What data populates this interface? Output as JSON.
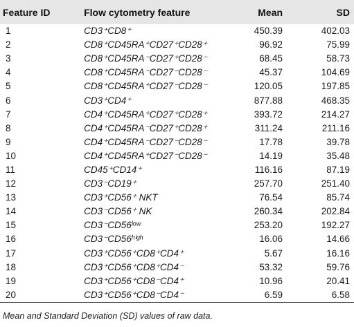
{
  "table": {
    "headers": {
      "id": "Feature ID",
      "feature": "Flow cytometry feature",
      "mean": "Mean",
      "sd": "SD"
    },
    "rows": [
      {
        "id": "1",
        "feature": "CD3⁺CD8⁺",
        "mean": "450.39",
        "sd": "402.03"
      },
      {
        "id": "2",
        "feature": "CD8⁺CD45RA⁺CD27⁺CD28⁺",
        "mean": "96.92",
        "sd": "75.99"
      },
      {
        "id": "3",
        "feature": "CD8⁺CD45RA⁻CD27⁺CD28⁻",
        "mean": "68.45",
        "sd": "58.73"
      },
      {
        "id": "4",
        "feature": "CD8⁺CD45RA⁻CD27⁻CD28⁻",
        "mean": "45.37",
        "sd": "104.69"
      },
      {
        "id": "5",
        "feature": "CD8⁺CD45RA⁺CD27⁻CD28⁻",
        "mean": "120.05",
        "sd": "197.85"
      },
      {
        "id": "6",
        "feature": "CD3⁺CD4⁺",
        "mean": "877.88",
        "sd": "468.35"
      },
      {
        "id": "7",
        "feature": "CD4⁺CD45RA⁺CD27⁺CD28⁺",
        "mean": "393.72",
        "sd": "214.27"
      },
      {
        "id": "8",
        "feature": "CD4⁺CD45RA⁻CD27⁺CD28⁺",
        "mean": "311.24",
        "sd": "211.16"
      },
      {
        "id": "9",
        "feature": "CD4⁺CD45RA⁻CD27⁻CD28⁻",
        "mean": "17.78",
        "sd": "39.78"
      },
      {
        "id": "10",
        "feature": "CD4⁺CD45RA⁺CD27⁻CD28⁻",
        "mean": "14.19",
        "sd": "35.48"
      },
      {
        "id": "11",
        "feature": "CD45⁺CD14⁺",
        "mean": "116.16",
        "sd": "87.19"
      },
      {
        "id": "12",
        "feature": "CD3⁻CD19⁺",
        "mean": "257.70",
        "sd": "251.40"
      },
      {
        "id": "13",
        "feature": "CD3⁺CD56⁺ NKT",
        "mean": "76.54",
        "sd": "85.74"
      },
      {
        "id": "14",
        "feature": "CD3⁻CD56⁺ NK",
        "mean": "260.34",
        "sd": "202.84"
      },
      {
        "id": "15",
        "feature": "CD3⁻CD56ˡᵒʷ",
        "mean": "253.20",
        "sd": "192.27"
      },
      {
        "id": "16",
        "feature": "CD3⁻CD56ʰⁱᵍʰ",
        "mean": "16.06",
        "sd": "14.66"
      },
      {
        "id": "17",
        "feature": "CD3⁺CD56⁺CD8⁺CD4⁺",
        "mean": "5.67",
        "sd": "16.16"
      },
      {
        "id": "18",
        "feature": "CD3⁺CD56⁺CD8⁺CD4⁻",
        "mean": "53.32",
        "sd": "59.76"
      },
      {
        "id": "19",
        "feature": "CD3⁺CD56⁺CD8⁻CD4⁺",
        "mean": "10.96",
        "sd": "20.41"
      },
      {
        "id": "20",
        "feature": "CD3⁺CD56⁺CD8⁻CD4⁻",
        "mean": "6.59",
        "sd": "6.58"
      }
    ]
  },
  "footnote": "Mean and Standard Deviation (SD) values of raw data."
}
